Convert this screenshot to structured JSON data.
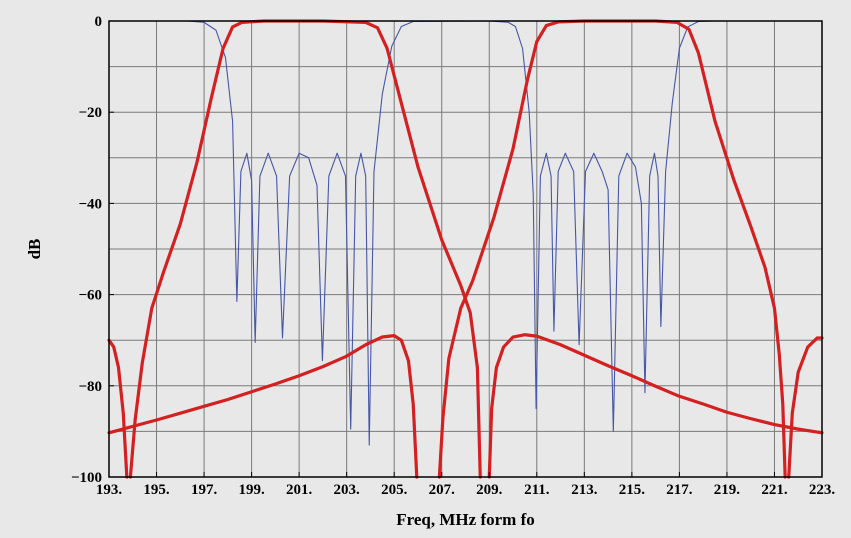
{
  "colors": {
    "background": "#e8e8e8",
    "plot_background": "#e8e8e8",
    "grid": "#7a7a7a",
    "frame": "#000000",
    "s21_curve": "#d42020",
    "s11_curve": "#4656a8"
  },
  "chart_data": {
    "type": "line",
    "xlabel": "Freq, MHz form fo",
    "ylabel": "dB",
    "xlim": [
      193,
      223
    ],
    "ylim": [
      -100,
      0
    ],
    "grid": true,
    "x_ticks": [
      193,
      195,
      197,
      199,
      201,
      203,
      205,
      207,
      209,
      211,
      213,
      215,
      217,
      219,
      221,
      223
    ],
    "x_tick_labels": [
      "193.",
      "195.",
      "197.",
      "199.",
      "201.",
      "203.",
      "205.",
      "207.",
      "209.",
      "211.",
      "213.",
      "215.",
      "217.",
      "219.",
      "221.",
      "223."
    ],
    "y_ticks": [
      0,
      -20,
      -40,
      -60,
      -80,
      -100
    ],
    "y_tick_labels": [
      "0",
      "−20",
      "−40",
      "−60",
      "−80",
      "−100"
    ],
    "series": [
      {
        "role": "filter-1-transmission",
        "color": "#d42020",
        "width": 3.2,
        "points": [
          [
            193.0,
            -90.3
          ],
          [
            194.0,
            -88.9
          ],
          [
            195.0,
            -87.5
          ],
          [
            196.0,
            -86.0
          ],
          [
            197.0,
            -84.5
          ],
          [
            198.0,
            -83.0
          ],
          [
            199.0,
            -81.3
          ],
          [
            200.0,
            -79.6
          ],
          [
            201.0,
            -77.8
          ],
          [
            202.0,
            -75.8
          ],
          [
            203.0,
            -73.5
          ],
          [
            203.8,
            -71.0
          ],
          [
            204.5,
            -69.3
          ],
          [
            205.0,
            -69.0
          ],
          [
            205.3,
            -70.0
          ],
          [
            205.6,
            -74.5
          ],
          [
            205.8,
            -84.0
          ],
          [
            205.95,
            -100.0
          ]
        ]
      },
      {
        "role": "filter-1-transmission",
        "color": "#d42020",
        "width": 3.2,
        "points": [
          [
            193.0,
            -70.0
          ],
          [
            193.2,
            -71.5
          ],
          [
            193.4,
            -76.0
          ],
          [
            193.6,
            -86.0
          ],
          [
            193.75,
            -100.0
          ]
        ]
      },
      {
        "role": "filter-1-transmission",
        "color": "#d42020",
        "width": 3.2,
        "points": [
          [
            193.9,
            -100.0
          ],
          [
            194.1,
            -87.5
          ],
          [
            194.4,
            -75.0
          ],
          [
            194.8,
            -63.0
          ],
          [
            195.3,
            -55.0
          ],
          [
            196.0,
            -44.5
          ],
          [
            196.7,
            -31.0
          ],
          [
            197.3,
            -17.0
          ],
          [
            197.8,
            -6.0
          ],
          [
            198.2,
            -1.3
          ],
          [
            198.6,
            -0.3
          ],
          [
            199.5,
            0.0
          ],
          [
            202.0,
            0.0
          ],
          [
            203.8,
            -0.3
          ],
          [
            204.3,
            -1.5
          ],
          [
            204.7,
            -6.0
          ],
          [
            205.3,
            -18.0
          ],
          [
            206.0,
            -32.0
          ],
          [
            207.0,
            -48.0
          ],
          [
            207.8,
            -58.0
          ],
          [
            208.2,
            -64.0
          ],
          [
            208.5,
            -76.0
          ],
          [
            208.62,
            -100.0
          ]
        ]
      },
      {
        "role": "filter-2-transmission",
        "color": "#d42020",
        "width": 3.2,
        "points": [
          [
            206.9,
            -100.0
          ],
          [
            207.05,
            -87.0
          ],
          [
            207.3,
            -74.0
          ],
          [
            207.8,
            -63.0
          ],
          [
            208.3,
            -57.0
          ],
          [
            209.2,
            -43.0
          ],
          [
            210.0,
            -28.0
          ],
          [
            210.6,
            -13.0
          ],
          [
            211.0,
            -4.5
          ],
          [
            211.4,
            -1.0
          ],
          [
            211.9,
            -0.2
          ],
          [
            213.0,
            0.0
          ],
          [
            216.0,
            0.0
          ],
          [
            216.9,
            -0.3
          ],
          [
            217.4,
            -1.8
          ],
          [
            217.8,
            -7.0
          ],
          [
            218.5,
            -22.0
          ],
          [
            219.3,
            -35.0
          ],
          [
            220.0,
            -45.0
          ],
          [
            220.6,
            -54.0
          ],
          [
            221.0,
            -63.0
          ],
          [
            221.2,
            -73.0
          ],
          [
            221.35,
            -84.0
          ],
          [
            221.45,
            -100.0
          ]
        ]
      },
      {
        "role": "filter-2-transmission",
        "color": "#d42020",
        "width": 3.2,
        "points": [
          [
            209.0,
            -100.0
          ],
          [
            209.1,
            -85.0
          ],
          [
            209.3,
            -76.0
          ],
          [
            209.6,
            -71.5
          ],
          [
            210.0,
            -69.3
          ],
          [
            210.5,
            -68.8
          ],
          [
            211.0,
            -69.1
          ],
          [
            212.0,
            -71.0
          ],
          [
            213.0,
            -73.3
          ],
          [
            214.0,
            -75.6
          ],
          [
            215.0,
            -77.8
          ],
          [
            216.0,
            -80.1
          ],
          [
            217.0,
            -82.3
          ],
          [
            218.0,
            -84.0
          ],
          [
            219.0,
            -85.8
          ],
          [
            220.0,
            -87.2
          ],
          [
            221.0,
            -88.5
          ],
          [
            222.0,
            -89.5
          ],
          [
            223.0,
            -90.3
          ]
        ]
      },
      {
        "role": "filter-2-transmission",
        "color": "#d42020",
        "width": 3.2,
        "points": [
          [
            221.6,
            -100.0
          ],
          [
            221.75,
            -86.0
          ],
          [
            222.0,
            -77.0
          ],
          [
            222.4,
            -71.5
          ],
          [
            222.8,
            -69.5
          ],
          [
            223.0,
            -69.5
          ]
        ]
      },
      {
        "role": "filter-1-reflection",
        "color": "#4656a8",
        "width": 1.1,
        "points": [
          [
            193.0,
            0.0
          ],
          [
            196.3,
            0.0
          ],
          [
            197.0,
            -0.3
          ],
          [
            197.5,
            -2.0
          ],
          [
            197.9,
            -8.0
          ],
          [
            198.2,
            -22.0
          ],
          [
            198.38,
            -61.5
          ],
          [
            198.55,
            -33.0
          ],
          [
            198.8,
            -29.0
          ],
          [
            199.0,
            -35.0
          ],
          [
            199.15,
            -70.5
          ],
          [
            199.35,
            -34.0
          ],
          [
            199.7,
            -29.0
          ],
          [
            200.05,
            -34.0
          ],
          [
            200.3,
            -69.5
          ],
          [
            200.6,
            -34.0
          ],
          [
            201.0,
            -29.0
          ],
          [
            201.4,
            -30.0
          ],
          [
            201.75,
            -36.0
          ],
          [
            201.98,
            -74.5
          ],
          [
            202.25,
            -34.0
          ],
          [
            202.6,
            -29.0
          ],
          [
            202.95,
            -34.0
          ],
          [
            203.17,
            -89.5
          ],
          [
            203.38,
            -34.0
          ],
          [
            203.6,
            -29.0
          ],
          [
            203.8,
            -34.0
          ],
          [
            203.95,
            -93.0
          ],
          [
            204.15,
            -33.0
          ],
          [
            204.5,
            -16.0
          ],
          [
            204.9,
            -5.5
          ],
          [
            205.3,
            -1.2
          ],
          [
            205.8,
            -0.1
          ],
          [
            209.0,
            0.0
          ],
          [
            209.8,
            -0.3
          ],
          [
            210.1,
            -1.2
          ],
          [
            210.4,
            -6.0
          ],
          [
            210.68,
            -20.0
          ],
          [
            210.85,
            -38.0
          ],
          [
            210.97,
            -85.0
          ],
          [
            211.15,
            -34.0
          ],
          [
            211.4,
            -29.0
          ],
          [
            211.6,
            -34.0
          ],
          [
            211.72,
            -68.0
          ],
          [
            211.9,
            -33.0
          ],
          [
            212.2,
            -29.0
          ],
          [
            212.55,
            -33.0
          ],
          [
            212.78,
            -71.0
          ],
          [
            213.05,
            -33.0
          ],
          [
            213.4,
            -29.0
          ],
          [
            213.75,
            -33.0
          ],
          [
            214.0,
            -37.0
          ],
          [
            214.22,
            -90.0
          ],
          [
            214.45,
            -34.0
          ],
          [
            214.8,
            -29.0
          ],
          [
            215.15,
            -32.0
          ],
          [
            215.4,
            -40.0
          ],
          [
            215.55,
            -81.5
          ],
          [
            215.75,
            -34.0
          ],
          [
            215.95,
            -29.0
          ],
          [
            216.1,
            -34.0
          ],
          [
            216.22,
            -67.0
          ],
          [
            216.42,
            -33.0
          ],
          [
            216.7,
            -18.0
          ],
          [
            217.0,
            -6.0
          ],
          [
            217.35,
            -1.3
          ],
          [
            217.8,
            -0.1
          ],
          [
            218.5,
            0.0
          ],
          [
            223.0,
            0.0
          ]
        ]
      }
    ]
  }
}
